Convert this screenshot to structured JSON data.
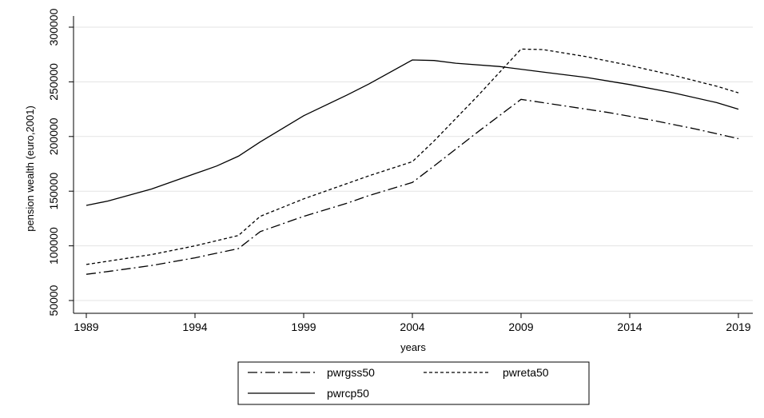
{
  "chart_data": {
    "type": "line",
    "title": "",
    "xlabel": "years",
    "ylabel": "pension wealth (euro,2001)",
    "xlim": [
      1989,
      2019
    ],
    "ylim": [
      50000,
      300000
    ],
    "xticks": [
      "1989",
      "1994",
      "1999",
      "2004",
      "2009",
      "2014",
      "2019"
    ],
    "yticks": [
      "50000",
      "100000",
      "150000",
      "200000",
      "250000",
      "300000"
    ],
    "grid": true,
    "legend_position": "bottom",
    "series": [
      {
        "name": "pwrgss50",
        "dash": "dash-dot",
        "x": [
          1989,
          1990,
          1992,
          1994,
          1996,
          1997,
          1999,
          2001,
          2002,
          2004,
          2005,
          2007,
          2009,
          2011,
          2013,
          2015,
          2017,
          2019
        ],
        "y": [
          74000,
          76500,
          82000,
          89000,
          97500,
          113000,
          127000,
          139000,
          146000,
          158000,
          173000,
          204000,
          234000,
          228000,
          222000,
          215000,
          207000,
          198000
        ]
      },
      {
        "name": "pwreta50",
        "dash": "dashed",
        "x": [
          1989,
          1990,
          1992,
          1994,
          1996,
          1997,
          1999,
          2001,
          2002,
          2004,
          2005,
          2007,
          2009,
          2010,
          2012,
          2014,
          2016,
          2018,
          2019
        ],
        "y": [
          83000,
          86000,
          92000,
          100000,
          109500,
          127000,
          143000,
          157000,
          164000,
          177000,
          196000,
          237000,
          280000,
          279500,
          273000,
          265000,
          256000,
          246000,
          240000
        ]
      },
      {
        "name": "pwrcp50",
        "dash": "solid",
        "x": [
          1989,
          1990,
          1992,
          1994,
          1995,
          1996,
          1997,
          1999,
          2001,
          2002,
          2004,
          2005,
          2006,
          2008,
          2010,
          2012,
          2014,
          2016,
          2018,
          2019
        ],
        "y": [
          137000,
          141000,
          152000,
          166000,
          173000,
          182000,
          195000,
          219000,
          238000,
          248000,
          270000,
          269500,
          267000,
          264000,
          259000,
          254000,
          247500,
          240000,
          231000,
          225000
        ]
      }
    ]
  }
}
